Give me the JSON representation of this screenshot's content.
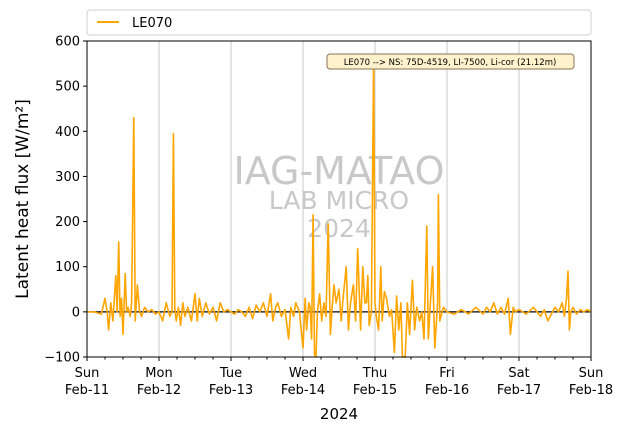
{
  "chart_data": {
    "type": "line",
    "ylabel": "Latent heat flux [W/m²]",
    "xlabel": "2024",
    "ylim": [
      -100,
      600
    ],
    "yticks": [
      -100,
      0,
      100,
      200,
      300,
      400,
      500,
      600
    ],
    "xlim_days": [
      0,
      7
    ],
    "grid": "vertical-only",
    "legend_placement": "top",
    "xticks": [
      {
        "day": "Sun",
        "date": "Feb-11"
      },
      {
        "day": "Mon",
        "date": "Feb-12"
      },
      {
        "day": "Tue",
        "date": "Feb-13"
      },
      {
        "day": "Wed",
        "date": "Feb-14"
      },
      {
        "day": "Thu",
        "date": "Feb-15"
      },
      {
        "day": "Fri",
        "date": "Feb-16"
      },
      {
        "day": "Sat",
        "date": "Feb-17"
      },
      {
        "day": "Sun",
        "date": "Feb-18"
      }
    ],
    "annotation": "LE070 --> NS: 75D-4519, LI-7500, Li-cor (21.12m)",
    "watermark": [
      "IAG-MATAO",
      "LAB MICRO",
      "2024"
    ],
    "series": [
      {
        "name": "LE070",
        "color": "#ffa500",
        "points": [
          [
            0.0,
            0
          ],
          [
            0.1,
            0
          ],
          [
            0.2,
            -5
          ],
          [
            0.25,
            30
          ],
          [
            0.28,
            0
          ],
          [
            0.3,
            -40
          ],
          [
            0.33,
            20
          ],
          [
            0.36,
            -20
          ],
          [
            0.4,
            80
          ],
          [
            0.42,
            0
          ],
          [
            0.44,
            155
          ],
          [
            0.46,
            -10
          ],
          [
            0.48,
            30
          ],
          [
            0.5,
            -50
          ],
          [
            0.53,
            85
          ],
          [
            0.55,
            0
          ],
          [
            0.57,
            10
          ],
          [
            0.6,
            -10
          ],
          [
            0.62,
            20
          ],
          [
            0.65,
            430
          ],
          [
            0.67,
            -20
          ],
          [
            0.7,
            60
          ],
          [
            0.73,
            0
          ],
          [
            0.76,
            -10
          ],
          [
            0.8,
            10
          ],
          [
            0.85,
            0
          ],
          [
            0.9,
            5
          ],
          [
            0.95,
            -5
          ],
          [
            1.0,
            0
          ],
          [
            1.05,
            -20
          ],
          [
            1.1,
            20
          ],
          [
            1.15,
            -10
          ],
          [
            1.18,
            0
          ],
          [
            1.2,
            395
          ],
          [
            1.22,
            5
          ],
          [
            1.24,
            -20
          ],
          [
            1.27,
            10
          ],
          [
            1.3,
            -30
          ],
          [
            1.33,
            20
          ],
          [
            1.36,
            -10
          ],
          [
            1.4,
            10
          ],
          [
            1.45,
            -20
          ],
          [
            1.5,
            40
          ],
          [
            1.53,
            -20
          ],
          [
            1.56,
            30
          ],
          [
            1.6,
            -10
          ],
          [
            1.65,
            20
          ],
          [
            1.7,
            -5
          ],
          [
            1.75,
            10
          ],
          [
            1.8,
            -20
          ],
          [
            1.85,
            20
          ],
          [
            1.9,
            0
          ],
          [
            1.95,
            5
          ],
          [
            2.0,
            0
          ],
          [
            2.05,
            -5
          ],
          [
            2.1,
            5
          ],
          [
            2.15,
            0
          ],
          [
            2.2,
            -10
          ],
          [
            2.25,
            10
          ],
          [
            2.3,
            -15
          ],
          [
            2.35,
            15
          ],
          [
            2.4,
            0
          ],
          [
            2.45,
            20
          ],
          [
            2.5,
            -10
          ],
          [
            2.55,
            40
          ],
          [
            2.58,
            -20
          ],
          [
            2.62,
            10
          ],
          [
            2.65,
            20
          ],
          [
            2.7,
            -10
          ],
          [
            2.75,
            5
          ],
          [
            2.8,
            -60
          ],
          [
            2.83,
            10
          ],
          [
            2.87,
            -10
          ],
          [
            2.9,
            20
          ],
          [
            2.95,
            0
          ],
          [
            3.0,
            -80
          ],
          [
            3.03,
            30
          ],
          [
            3.05,
            -40
          ],
          [
            3.08,
            20
          ],
          [
            3.1,
            10
          ],
          [
            3.12,
            -60
          ],
          [
            3.14,
            215
          ],
          [
            3.16,
            -95
          ],
          [
            3.18,
            -100
          ],
          [
            3.2,
            0
          ],
          [
            3.23,
            40
          ],
          [
            3.26,
            -20
          ],
          [
            3.29,
            20
          ],
          [
            3.32,
            -10
          ],
          [
            3.35,
            195
          ],
          [
            3.38,
            -50
          ],
          [
            3.4,
            0
          ],
          [
            3.43,
            60
          ],
          [
            3.46,
            20
          ],
          [
            3.5,
            50
          ],
          [
            3.53,
            -20
          ],
          [
            3.56,
            35
          ],
          [
            3.6,
            100
          ],
          [
            3.63,
            -40
          ],
          [
            3.66,
            20
          ],
          [
            3.7,
            60
          ],
          [
            3.73,
            -20
          ],
          [
            3.76,
            140
          ],
          [
            3.8,
            -40
          ],
          [
            3.83,
            100
          ],
          [
            3.86,
            20
          ],
          [
            3.88,
            20
          ],
          [
            3.9,
            80
          ],
          [
            3.92,
            -30
          ],
          [
            3.95,
            0
          ],
          [
            3.98,
            560
          ],
          [
            4.0,
            20
          ],
          [
            4.02,
            -10
          ],
          [
            4.05,
            -40
          ],
          [
            4.08,
            100
          ],
          [
            4.1,
            -20
          ],
          [
            4.13,
            45
          ],
          [
            4.16,
            30
          ],
          [
            4.2,
            -10
          ],
          [
            4.23,
            5
          ],
          [
            4.27,
            -90
          ],
          [
            4.3,
            35
          ],
          [
            4.33,
            -40
          ],
          [
            4.36,
            20
          ],
          [
            4.38,
            -100
          ],
          [
            4.42,
            -100
          ],
          [
            4.45,
            20
          ],
          [
            4.48,
            -50
          ],
          [
            4.52,
            70
          ],
          [
            4.55,
            -40
          ],
          [
            4.58,
            10
          ],
          [
            4.62,
            -20
          ],
          [
            4.65,
            0
          ],
          [
            4.68,
            -60
          ],
          [
            4.72,
            190
          ],
          [
            4.74,
            -60
          ],
          [
            4.77,
            20
          ],
          [
            4.8,
            100
          ],
          [
            4.83,
            -80
          ],
          [
            4.87,
            20
          ],
          [
            4.88,
            260
          ],
          [
            4.9,
            -20
          ],
          [
            4.95,
            10
          ],
          [
            5.0,
            0
          ],
          [
            5.1,
            -5
          ],
          [
            5.2,
            5
          ],
          [
            5.3,
            -5
          ],
          [
            5.4,
            10
          ],
          [
            5.5,
            -5
          ],
          [
            5.55,
            10
          ],
          [
            5.6,
            0
          ],
          [
            5.65,
            20
          ],
          [
            5.7,
            -5
          ],
          [
            5.75,
            10
          ],
          [
            5.8,
            -5
          ],
          [
            5.85,
            30
          ],
          [
            5.88,
            -50
          ],
          [
            5.92,
            10
          ],
          [
            5.95,
            0
          ],
          [
            6.0,
            5
          ],
          [
            6.1,
            -5
          ],
          [
            6.2,
            10
          ],
          [
            6.25,
            0
          ],
          [
            6.3,
            -10
          ],
          [
            6.35,
            5
          ],
          [
            6.4,
            -20
          ],
          [
            6.45,
            -5
          ],
          [
            6.5,
            10
          ],
          [
            6.55,
            0
          ],
          [
            6.6,
            20
          ],
          [
            6.63,
            -10
          ],
          [
            6.66,
            30
          ],
          [
            6.68,
            90
          ],
          [
            6.7,
            -40
          ],
          [
            6.72,
            0
          ],
          [
            6.75,
            10
          ],
          [
            6.8,
            -5
          ],
          [
            6.85,
            5
          ],
          [
            6.9,
            0
          ],
          [
            6.95,
            5
          ],
          [
            7.0,
            0
          ]
        ]
      }
    ]
  }
}
